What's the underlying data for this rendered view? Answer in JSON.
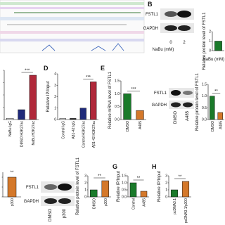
{
  "panels": [
    "B",
    "D",
    "E",
    "G",
    "H"
  ],
  "blots": [
    {
      "rows": [
        "FSTL1",
        "GAPDH"
      ],
      "lanes": [
        "0",
        "2"
      ],
      "lane_title": "NaBu (mM)"
    },
    {
      "rows": [
        "FSTL1",
        "GAPDH"
      ],
      "lanes": [
        "DMSO",
        "A485"
      ]
    },
    {
      "rows": [
        "FSTL1",
        "GAPDH"
      ],
      "lanes": [
        "DMSO",
        "p300"
      ]
    }
  ],
  "chart_data": [
    {
      "type": "bar",
      "categories": [
        "NaBu IgG",
        "DMSO H3K27ac",
        "NaBu H3K27ac"
      ],
      "values": [
        0.1,
        0.8,
        3.6
      ],
      "colors": [
        "#ffffff",
        "#1f2a7a",
        "#b0283a"
      ],
      "ylim": [
        0,
        4
      ],
      "yticks": [
        0,
        1,
        2,
        3,
        4
      ],
      "significance": "***"
    },
    {
      "type": "bar",
      "ylabel": "Relative IP/Input",
      "categories": [
        "Control IgG",
        "Aβ1-42 IgG",
        "Control H3K27ac",
        "Aβ1-42 H3K27ac"
      ],
      "values": [
        0.1,
        0.1,
        1.0,
        3.3
      ],
      "colors": [
        "#ffffff",
        "#333333",
        "#1f2a7a",
        "#b0283a"
      ],
      "ylim": [
        0,
        4
      ],
      "yticks": [
        0,
        1,
        2,
        3,
        4
      ],
      "significance": "***"
    },
    {
      "type": "bar",
      "ylabel": "Relative mRNA level of FSTL1",
      "categories": [
        "DMSO",
        "A485"
      ],
      "values": [
        1.0,
        0.35
      ],
      "colors": [
        "#1a7a2a",
        "#d4782a"
      ],
      "ylim": [
        0,
        1.5
      ],
      "yticks": [
        {
          "value": 0,
          "label": "0.0"
        },
        0.5,
        {
          "value": 1,
          "label": "1.0"
        },
        1.5
      ],
      "significance": "***"
    },
    {
      "type": "bar",
      "ylabel": "Relative protein level of FSTL1",
      "categories": [
        "DMSO",
        "A485"
      ],
      "values": [
        1.0,
        0.3
      ],
      "colors": [
        "#1a7a2a",
        "#d4782a"
      ],
      "ylim": [
        0,
        1.5
      ],
      "yticks": [
        {
          "value": 0,
          "label": "0.0"
        },
        0.5,
        {
          "value": 1,
          "label": "1.0"
        },
        1.5
      ],
      "significance": "**"
    },
    {
      "type": "bar",
      "categories": [
        "p300"
      ],
      "values": [
        2.0
      ],
      "colors": [
        "#d4782a"
      ],
      "ylim": [
        0,
        2.5
      ],
      "yticks": [
        0,
        1,
        2
      ],
      "significance": "**"
    },
    {
      "type": "bar",
      "ylabel": "Relative protein level of FSTL1",
      "categories": [
        "DMSO",
        "p300"
      ],
      "values": [
        1.0,
        2.3
      ],
      "colors": [
        "#1a7a2a",
        "#d4782a"
      ],
      "ylim": [
        0,
        3
      ],
      "yticks": [
        0,
        1,
        2,
        3
      ],
      "significance": "**"
    },
    {
      "type": "bar",
      "ylabel": "Relative IP/Input",
      "categories": [
        "Control",
        "A485"
      ],
      "values": [
        1.0,
        0.4
      ],
      "colors": [
        "#1a7a2a",
        "#d4782a"
      ],
      "ylim": [
        0,
        1.5
      ],
      "yticks": [
        {
          "value": 0,
          "label": "0.0"
        },
        0.5,
        {
          "value": 1,
          "label": "1.0"
        },
        1.5
      ],
      "significance": "**"
    },
    {
      "type": "bar",
      "ylabel": "Relative IP/Input",
      "categories": [
        "pcDNA3.1",
        "pcDNA3.1/p300"
      ],
      "values": [
        1.0,
        2.2
      ],
      "colors": [
        "#1a7a2a",
        "#d4782a"
      ],
      "ylim": [
        0,
        3
      ],
      "yticks": [
        0,
        1,
        2,
        3
      ],
      "significance": "**"
    },
    {
      "type": "bar",
      "ylabel": "Relative protein level of FSTL1",
      "xlabel": "NaBu (mM)",
      "categories": [
        null
      ],
      "values": [
        1.0
      ],
      "colors": [
        "#1a7a2a"
      ],
      "ylim": [
        0,
        2
      ],
      "yticks": [
        0,
        1,
        2
      ]
    }
  ]
}
